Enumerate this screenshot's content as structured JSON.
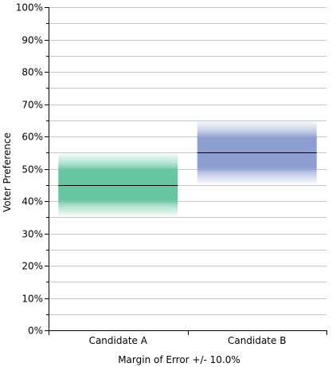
{
  "chart_data": {
    "type": "bar",
    "categories": [
      "Candidate A",
      "Candidate B"
    ],
    "series": [
      {
        "values": [
          45,
          55
        ],
        "margin_of_error": 10,
        "colors": [
          "#66c6a3",
          "#8d9fd0"
        ]
      }
    ],
    "xlabel": "Margin of Error +/- 10.0%",
    "ylabel": "Voter Preference",
    "ylim": [
      0,
      100
    ],
    "y_ticks": [
      "0%",
      "10%",
      "20%",
      "30%",
      "40%",
      "50%",
      "60%",
      "70%",
      "80%",
      "90%",
      "100%"
    ],
    "y_tick_values": [
      0,
      10,
      20,
      30,
      40,
      50,
      60,
      70,
      80,
      90,
      100
    ],
    "grid": true,
    "minor_grid": true,
    "legend": "none",
    "gridline_color": "#c8c8c8",
    "axis_color": "#000000"
  }
}
